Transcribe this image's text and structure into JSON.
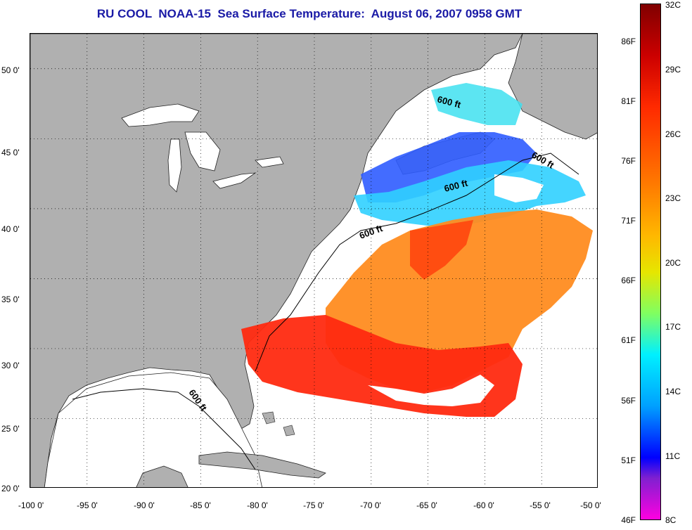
{
  "title": "RU COOL  NOAA-15  Sea Surface Temperature:  August 06, 2007 0958 GMT",
  "map": {
    "lat_ticks": [
      "50 0'",
      "45 0'",
      "40 0'",
      "35 0'",
      "30 0'",
      "25 0'",
      "20 0'"
    ],
    "lon_ticks": [
      "-100 0'",
      "-95 0'",
      "-90 0'",
      "-85 0'",
      "-80 0'",
      "-75 0'",
      "-70 0'",
      "-65 0'",
      "-60 0'",
      "-55 0'",
      "-50 0'"
    ],
    "lat_range": [
      20,
      52.5
    ],
    "lon_range": [
      -100,
      -50
    ],
    "isobath_labels": [
      "600 ft",
      "600 ft",
      "600 ft",
      "600 ft",
      "600 ft"
    ],
    "colors": {
      "land": "#b0b0b0",
      "no_data": "#ffffff",
      "warm": "#ff3a10",
      "orange": "#ff8a20",
      "cool": "#30c0ff",
      "cold": "#2040ff"
    }
  },
  "colorbar": {
    "fahrenheit": [
      "86F",
      "81F",
      "76F",
      "71F",
      "66F",
      "61F",
      "56F",
      "51F",
      "46F"
    ],
    "celsius": [
      "32C",
      "29C",
      "26C",
      "23C",
      "20C",
      "17C",
      "14C",
      "11C",
      "8C"
    ]
  }
}
